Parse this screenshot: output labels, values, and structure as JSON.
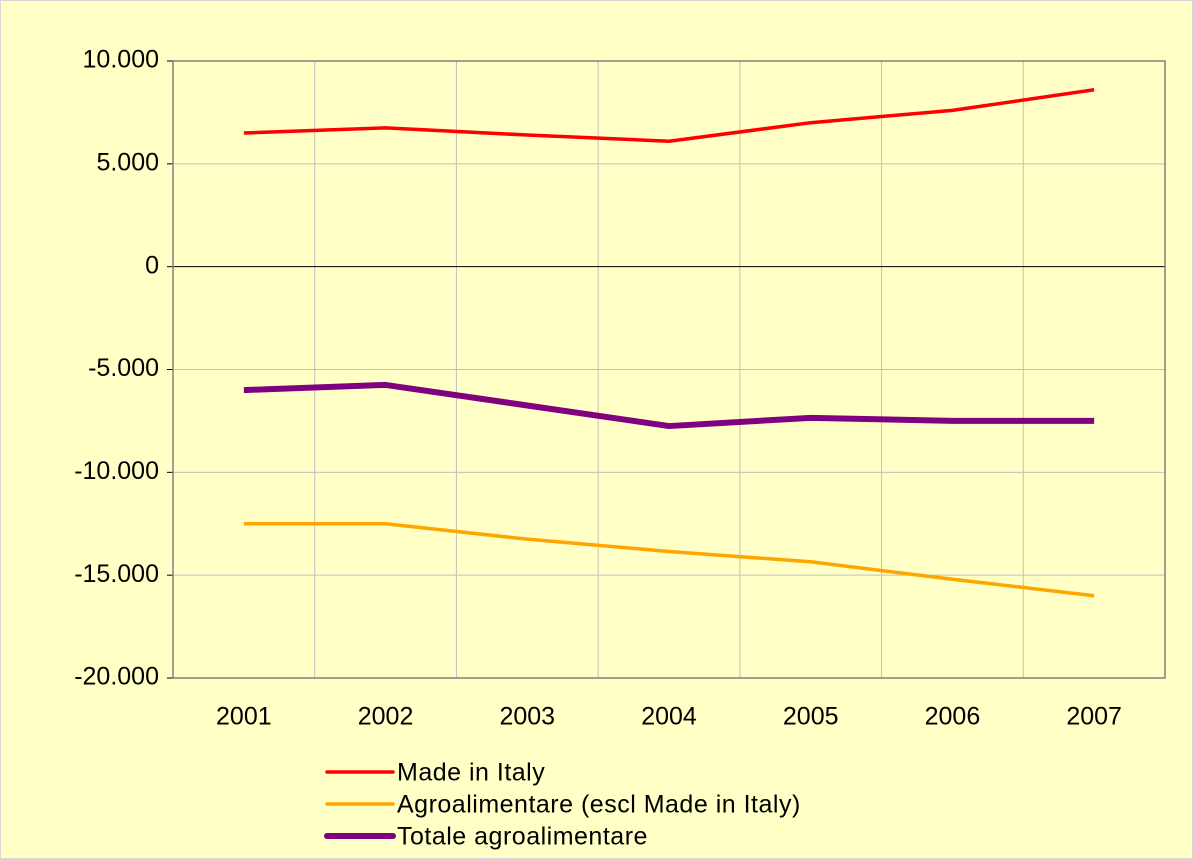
{
  "chart_data": {
    "type": "line",
    "categories": [
      "2001",
      "2002",
      "2003",
      "2004",
      "2005",
      "2006",
      "2007"
    ],
    "series": [
      {
        "name": "Made in Italy",
        "color": "#ff0000",
        "values": [
          6500,
          6750,
          6400,
          6100,
          7000,
          7600,
          8600
        ]
      },
      {
        "name": "Agroalimentare (escl Made in Italy)",
        "color": "#ffa500",
        "values": [
          -12500,
          -12500,
          -13250,
          -13850,
          -14350,
          -15200,
          -16000
        ]
      },
      {
        "name": "Totale agroalimentare",
        "color": "#800080",
        "values": [
          -6000,
          -5750,
          -6750,
          -7750,
          -7350,
          -7500,
          -7500
        ]
      }
    ],
    "ylim": [
      -20000,
      10000
    ],
    "yticks": [
      {
        "value": -20000,
        "label": "-20.000"
      },
      {
        "value": -15000,
        "label": "-15.000"
      },
      {
        "value": -10000,
        "label": "-10.000"
      },
      {
        "value": -5000,
        "label": "-5.000"
      },
      0,
      {
        "value": 5000,
        "label": "5.000"
      },
      {
        "value": 10000,
        "label": "10.000"
      }
    ],
    "grid": true
  }
}
